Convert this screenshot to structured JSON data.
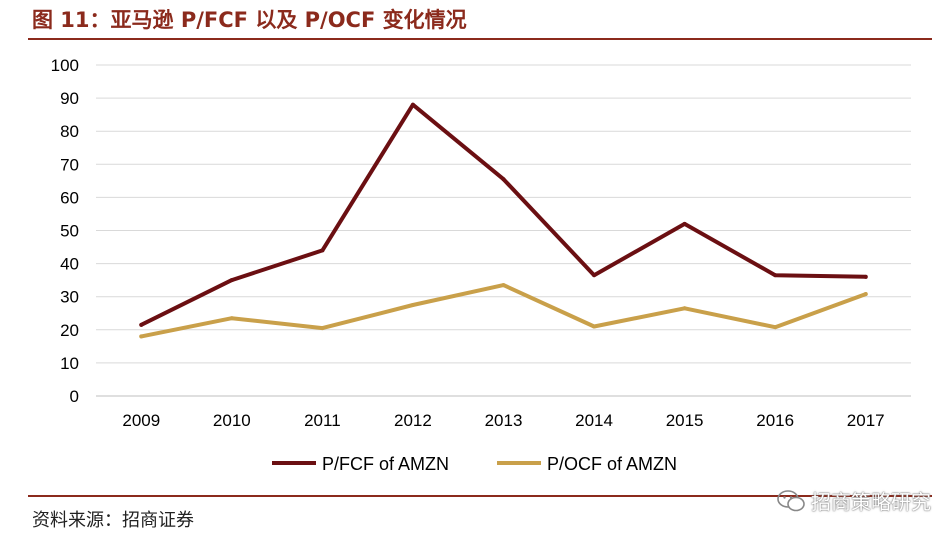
{
  "header": {
    "title": "图 11：亚马逊 P/FCF 以及 P/OCF 变化情况"
  },
  "footer": {
    "source": "资料来源：招商证券",
    "watermark": "招商策略研究"
  },
  "icons": {
    "watermark_icon": "wechat-icon"
  },
  "colors": {
    "accent": "#8b2a1c",
    "series1": "#6b0f12",
    "series2": "#c9a04a",
    "grid": "#d9d9d9"
  },
  "chart_data": {
    "type": "line",
    "title": "",
    "xlabel": "",
    "ylabel": "",
    "categories": [
      "2009",
      "2010",
      "2011",
      "2012",
      "2013",
      "2014",
      "2015",
      "2016",
      "2017"
    ],
    "yticks": [
      "0",
      "10",
      "20",
      "30",
      "40",
      "50",
      "60",
      "70",
      "80",
      "90",
      "100"
    ],
    "ylim": [
      0,
      100
    ],
    "grid": true,
    "legend_position": "bottom",
    "series": [
      {
        "name": "P/FCF of AMZN",
        "color": "#6b0f12",
        "values": [
          21.5,
          35,
          44,
          88,
          65.5,
          36.5,
          52,
          36.5,
          36
        ]
      },
      {
        "name": "P/OCF of AMZN",
        "color": "#c9a04a",
        "values": [
          18,
          23.5,
          20.5,
          27.5,
          33.5,
          21,
          26.5,
          20.8,
          30.8
        ]
      }
    ]
  }
}
